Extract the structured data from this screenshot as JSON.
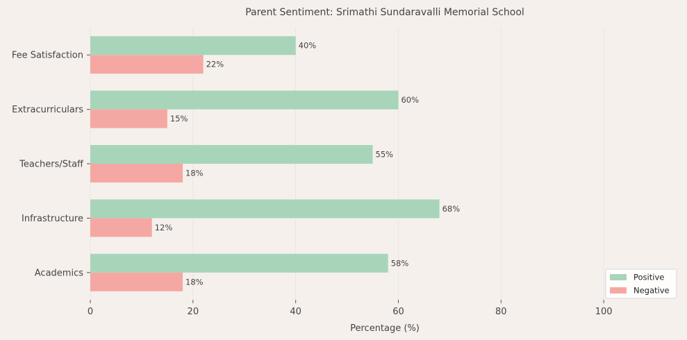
{
  "chart_data": {
    "type": "bar",
    "orientation": "horizontal",
    "title": "Parent Sentiment: Srimathi Sundaravalli Memorial School",
    "xlabel": "Percentage (%)",
    "ylabel": "",
    "categories": [
      "Academics",
      "Infrastructure",
      "Teachers/Staff",
      "Extracurriculars",
      "Fee Satisfaction"
    ],
    "series": [
      {
        "name": "Positive",
        "values": [
          58,
          68,
          55,
          60,
          40
        ],
        "color": "#a8d5ba"
      },
      {
        "name": "Negative",
        "values": [
          18,
          12,
          18,
          15,
          22
        ],
        "color": "#f5a8a3"
      }
    ],
    "data_labels": {
      "Positive": [
        "58%",
        "68%",
        "55%",
        "60%",
        "40%"
      ],
      "Negative": [
        "18%",
        "12%",
        "18%",
        "15%",
        "22%"
      ]
    },
    "xlim": [
      0,
      115
    ],
    "xticks": [
      "0",
      "20",
      "40",
      "60",
      "80",
      "100"
    ],
    "grid": "x-dashed",
    "legend_position": "bottom-right",
    "background": "#f5f0ec"
  }
}
